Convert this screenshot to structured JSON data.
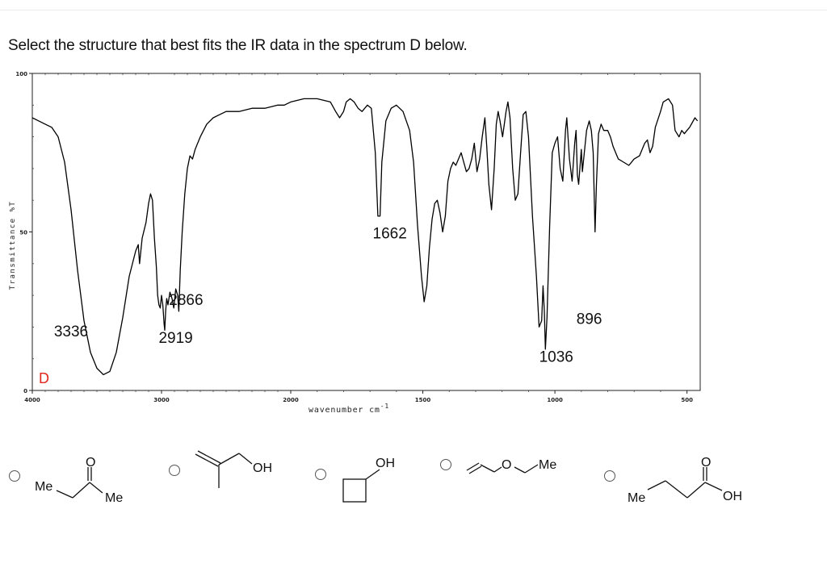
{
  "question": {
    "text": "Select the structure that best fits the IR data in the spectrum D below."
  },
  "chart_data": {
    "type": "line",
    "title": "",
    "spectrum_label": "D",
    "xlabel": "wavenumber cm",
    "xlabel_superscript": "-1",
    "ylabel": "Transmittance %T",
    "xlim": [
      4000,
      450
    ],
    "x_reversed": true,
    "ylim": [
      0,
      100
    ],
    "grid": false,
    "x_ticks": [
      4000,
      3000,
      2000,
      1500,
      1000,
      500
    ],
    "x_tick_labels": [
      "4000",
      "3000",
      "2000",
      "1500",
      "1000",
      "500"
    ],
    "y_ticks": [
      0,
      50,
      100
    ],
    "y_tick_labels": [
      "0",
      "50",
      "100"
    ],
    "color": "#000000",
    "label_color": "#e0271d",
    "series": [
      {
        "points": [
          [
            4000,
            86
          ],
          [
            3950,
            85
          ],
          [
            3900,
            84
          ],
          [
            3850,
            83
          ],
          [
            3800,
            80
          ],
          [
            3750,
            72
          ],
          [
            3700,
            57
          ],
          [
            3650,
            38
          ],
          [
            3600,
            22
          ],
          [
            3550,
            12
          ],
          [
            3500,
            7
          ],
          [
            3450,
            5
          ],
          [
            3400,
            6
          ],
          [
            3350,
            12
          ],
          [
            3300,
            23
          ],
          [
            3250,
            36
          ],
          [
            3200,
            44
          ],
          [
            3180,
            46
          ],
          [
            3170,
            40
          ],
          [
            3150,
            48
          ],
          [
            3120,
            53
          ],
          [
            3100,
            59
          ],
          [
            3085,
            62
          ],
          [
            3070,
            60
          ],
          [
            3055,
            48
          ],
          [
            3040,
            39
          ],
          [
            3030,
            30
          ],
          [
            3020,
            27
          ],
          [
            3010,
            26
          ],
          [
            3000,
            30
          ],
          [
            2990,
            27
          ],
          [
            2980,
            21
          ],
          [
            2975,
            19
          ],
          [
            2968,
            25
          ],
          [
            2960,
            29
          ],
          [
            2950,
            27
          ],
          [
            2935,
            31
          ],
          [
            2919,
            29
          ],
          [
            2905,
            26
          ],
          [
            2890,
            32
          ],
          [
            2875,
            30
          ],
          [
            2866,
            25
          ],
          [
            2855,
            38
          ],
          [
            2840,
            50
          ],
          [
            2820,
            62
          ],
          [
            2800,
            70
          ],
          [
            2780,
            74
          ],
          [
            2760,
            73
          ],
          [
            2740,
            76
          ],
          [
            2700,
            80
          ],
          [
            2650,
            84
          ],
          [
            2600,
            86
          ],
          [
            2550,
            87
          ],
          [
            2500,
            88
          ],
          [
            2400,
            88
          ],
          [
            2300,
            89
          ],
          [
            2200,
            89
          ],
          [
            2100,
            90
          ],
          [
            2050,
            90
          ],
          [
            2000,
            91
          ],
          [
            1950,
            92
          ],
          [
            1900,
            92
          ],
          [
            1850,
            91
          ],
          [
            1830,
            88
          ],
          [
            1815,
            86
          ],
          [
            1800,
            88
          ],
          [
            1790,
            91
          ],
          [
            1775,
            92
          ],
          [
            1760,
            91
          ],
          [
            1745,
            89
          ],
          [
            1730,
            88
          ],
          [
            1710,
            90
          ],
          [
            1695,
            89
          ],
          [
            1680,
            75
          ],
          [
            1670,
            55
          ],
          [
            1662,
            55
          ],
          [
            1655,
            72
          ],
          [
            1640,
            85
          ],
          [
            1620,
            89
          ],
          [
            1600,
            90
          ],
          [
            1575,
            88
          ],
          [
            1550,
            82
          ],
          [
            1535,
            72
          ],
          [
            1520,
            52
          ],
          [
            1505,
            36
          ],
          [
            1495,
            28
          ],
          [
            1485,
            33
          ],
          [
            1475,
            45
          ],
          [
            1465,
            54
          ],
          [
            1455,
            59
          ],
          [
            1445,
            60
          ],
          [
            1435,
            56
          ],
          [
            1425,
            50
          ],
          [
            1415,
            55
          ],
          [
            1405,
            66
          ],
          [
            1395,
            70
          ],
          [
            1385,
            72
          ],
          [
            1375,
            71
          ],
          [
            1365,
            73
          ],
          [
            1355,
            75
          ],
          [
            1345,
            72
          ],
          [
            1335,
            69
          ],
          [
            1325,
            70
          ],
          [
            1315,
            73
          ],
          [
            1305,
            78
          ],
          [
            1295,
            69
          ],
          [
            1285,
            73
          ],
          [
            1275,
            80
          ],
          [
            1265,
            86
          ],
          [
            1258,
            77
          ],
          [
            1250,
            65
          ],
          [
            1240,
            57
          ],
          [
            1230,
            70
          ],
          [
            1222,
            84
          ],
          [
            1215,
            88
          ],
          [
            1208,
            85
          ],
          [
            1198,
            80
          ],
          [
            1185,
            88
          ],
          [
            1178,
            91
          ],
          [
            1170,
            86
          ],
          [
            1160,
            70
          ],
          [
            1150,
            60
          ],
          [
            1140,
            62
          ],
          [
            1130,
            75
          ],
          [
            1120,
            87
          ],
          [
            1110,
            88
          ],
          [
            1100,
            80
          ],
          [
            1085,
            55
          ],
          [
            1070,
            36
          ],
          [
            1060,
            20
          ],
          [
            1050,
            22
          ],
          [
            1045,
            33
          ],
          [
            1040,
            25
          ],
          [
            1036,
            13
          ],
          [
            1030,
            23
          ],
          [
            1020,
            52
          ],
          [
            1010,
            75
          ],
          [
            1000,
            78
          ],
          [
            990,
            80
          ],
          [
            980,
            70
          ],
          [
            970,
            66
          ],
          [
            960,
            82
          ],
          [
            955,
            86
          ],
          [
            945,
            73
          ],
          [
            935,
            66
          ],
          [
            925,
            78
          ],
          [
            920,
            82
          ],
          [
            915,
            68
          ],
          [
            910,
            65
          ],
          [
            900,
            76
          ],
          [
            896,
            69
          ],
          [
            890,
            74
          ],
          [
            880,
            82
          ],
          [
            870,
            85
          ],
          [
            862,
            82
          ],
          [
            855,
            75
          ],
          [
            848,
            50
          ],
          [
            843,
            65
          ],
          [
            835,
            81
          ],
          [
            825,
            84
          ],
          [
            815,
            82
          ],
          [
            800,
            82
          ],
          [
            790,
            80
          ],
          [
            780,
            77
          ],
          [
            770,
            75
          ],
          [
            760,
            73
          ],
          [
            740,
            72
          ],
          [
            720,
            71
          ],
          [
            700,
            73
          ],
          [
            680,
            74
          ],
          [
            660,
            78
          ],
          [
            650,
            79
          ],
          [
            640,
            75
          ],
          [
            630,
            77
          ],
          [
            620,
            83
          ],
          [
            600,
            88
          ],
          [
            590,
            91
          ],
          [
            570,
            92
          ],
          [
            555,
            90
          ],
          [
            545,
            82
          ],
          [
            530,
            80
          ],
          [
            520,
            82
          ],
          [
            510,
            81
          ],
          [
            500,
            82
          ],
          [
            490,
            83
          ],
          [
            470,
            86
          ],
          [
            460,
            85
          ]
        ]
      }
    ],
    "annotations": [
      {
        "text": "3336",
        "x": 3700,
        "y": 17
      },
      {
        "text": "2866",
        "x": 2810,
        "y": 27
      },
      {
        "text": "2919",
        "x": 2890,
        "y": 15
      },
      {
        "text": "1662",
        "x": 1625,
        "y": 48
      },
      {
        "text": "896",
        "x": 870,
        "y": 21
      },
      {
        "text": "1036",
        "x": 995,
        "y": 9
      }
    ]
  },
  "options": [
    {
      "atoms": [
        "O",
        "Me",
        "Me"
      ]
    },
    {
      "atoms": [
        "OH"
      ]
    },
    {
      "atoms": [
        "OH"
      ]
    },
    {
      "atoms": [
        "O",
        "Me"
      ]
    },
    {
      "atoms": [
        "O",
        "Me",
        "OH"
      ]
    }
  ]
}
